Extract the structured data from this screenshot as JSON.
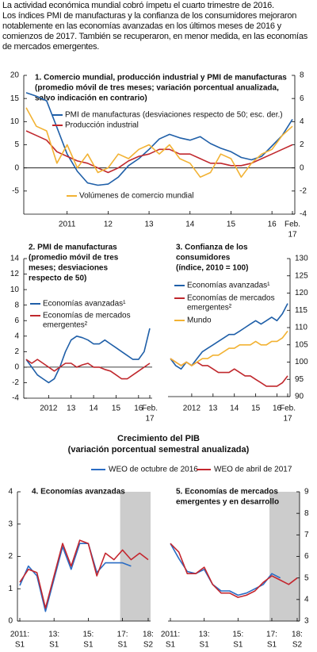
{
  "header": {
    "title": "La actividad económica mundial cobró ímpetu el cuarto trimestre de 2016.",
    "body": "Los índices PMI de manufacturas y la confianza de los consumidores mejoraron notablemente en las economías avanzadas en los últimos meses de 2016 y comienzos de 2017. También se recuperaron, en menor medida, en las economías de mercados emergentes."
  },
  "gdp_panel_title": [
    "Crecimiento del PIB",
    "(variación porcentual semestral anualizada)"
  ],
  "chart_data": [
    {
      "type": "line",
      "title": [
        "1. Comercio mundial, producción industrial y PMI de manufacturas",
        "(promedio móvil de tres meses; variación porcentual anualizada,",
        "salvo indicación en contrario)"
      ],
      "categories": [
        null,
        null,
        null,
        null,
        "2011",
        null,
        null,
        null,
        "12",
        null,
        null,
        null,
        "13",
        null,
        null,
        null,
        "14",
        null,
        null,
        null,
        "15",
        null,
        null,
        null,
        "16",
        null,
        [
          "Feb.",
          "17"
        ]
      ],
      "ylim": [
        -10,
        20
      ],
      "yticks": [
        -5,
        0,
        5,
        10,
        15,
        20
      ],
      "y2lim": [
        -4,
        8
      ],
      "y2ticks": [
        -4,
        -2,
        0,
        2,
        4,
        6,
        8
      ],
      "series": [
        {
          "name": "PMI de manufacturas (desviaciones respecto de 50; esc. der.)",
          "color": "#1f5fa8",
          "axis": "y2",
          "values": [
            6.5,
            6.2,
            5.8,
            3.5,
            1.2,
            -0.3,
            -1.3,
            -1.5,
            -1.4,
            -0.8,
            0.2,
            0.8,
            1.6,
            2.5,
            2.9,
            2.6,
            2.4,
            2.7,
            2.1,
            1.7,
            1.4,
            0.9,
            0.7,
            1.0,
            1.9,
            2.8,
            4.2
          ]
        },
        {
          "name": "Producción industrial",
          "color": "#c0282d",
          "values": [
            8,
            7,
            6,
            3.5,
            2.5,
            1.5,
            1,
            0,
            -1,
            0,
            1.5,
            2.5,
            3,
            4,
            4,
            3,
            3,
            2,
            1,
            1,
            0.5,
            0.5,
            1,
            2,
            3,
            4,
            5
          ]
        },
        {
          "name": "Volúmenes de comercio mundial",
          "color": "#f2b233",
          "values": [
            13,
            9,
            8,
            1,
            5,
            0,
            3,
            -1,
            0,
            3,
            2,
            4,
            5,
            3,
            5,
            2,
            1,
            -2,
            -1,
            3,
            2,
            -2,
            1,
            3,
            4,
            7,
            9
          ]
        }
      ]
    },
    {
      "type": "line",
      "title": [
        "2. PMI de manufacturas",
        "(promedio móvil de tres",
        "meses; desviaciones",
        "respecto de 50)"
      ],
      "categories": [
        null,
        null,
        null,
        null,
        "2012",
        null,
        null,
        null,
        "13",
        null,
        null,
        null,
        "14",
        null,
        null,
        null,
        "15",
        null,
        null,
        null,
        "16",
        null,
        [
          "Feb.",
          "17"
        ]
      ],
      "ylim": [
        -4,
        14
      ],
      "yticks": [
        -4,
        -2,
        0,
        2,
        4,
        6,
        8,
        10,
        12,
        14
      ],
      "series": [
        {
          "name": "Economías avanzadas¹",
          "color": "#1f5fa8",
          "values": [
            1,
            0,
            -1,
            -1.5,
            -2,
            -1.5,
            0,
            2,
            3.5,
            4,
            3.8,
            3.5,
            3,
            3,
            3.5,
            3,
            2.5,
            2,
            1.5,
            1,
            1,
            2,
            5
          ]
        },
        {
          "name": [
            "Economías de mercados",
            "emergentes²"
          ],
          "color": "#c0282d",
          "values": [
            1,
            0.5,
            1,
            0.5,
            0,
            -0.5,
            0,
            0.5,
            0.5,
            0,
            0.3,
            0.5,
            0,
            0,
            -0.3,
            -0.5,
            -1,
            -1.5,
            -1.5,
            -1,
            -0.5,
            0,
            0.5
          ]
        }
      ]
    },
    {
      "type": "line",
      "title": [
        "3. Confianza de los",
        "consumidores",
        "(índice, 2010 = 100)"
      ],
      "categories": [
        null,
        null,
        null,
        null,
        "2012",
        null,
        null,
        null,
        "13",
        null,
        null,
        null,
        "14",
        null,
        null,
        null,
        "15",
        null,
        null,
        null,
        "16",
        null,
        [
          "Feb.",
          "17"
        ]
      ],
      "y_axis_position": "right",
      "ylim": [
        90,
        130
      ],
      "yticks": [
        90,
        95,
        100,
        105,
        110,
        115,
        120,
        125,
        130
      ],
      "series": [
        {
          "name": "Economías avanzadas¹",
          "color": "#1f5fa8",
          "values": [
            101,
            99,
            98,
            100,
            99,
            101,
            103,
            104,
            105,
            106,
            107,
            108,
            108,
            109,
            110,
            111,
            112,
            111,
            112,
            113,
            112,
            114,
            117
          ]
        },
        {
          "name": [
            "Economías de mercados",
            "emergentes²"
          ],
          "color": "#c0282d",
          "values": [
            101,
            100,
            99,
            100,
            99,
            100,
            99,
            99,
            98,
            97,
            97,
            97,
            98,
            97,
            96,
            96,
            95,
            94,
            93,
            93,
            93,
            94,
            96
          ]
        },
        {
          "name": "Mundo",
          "color": "#f2b233",
          "values": [
            101,
            100,
            99,
            100,
            99,
            100,
            101,
            101,
            102,
            102,
            103,
            104,
            104,
            105,
            105,
            105,
            106,
            105,
            105,
            106,
            106,
            107,
            109
          ]
        }
      ]
    },
    {
      "type": "line",
      "title": [
        "4. Economías avanzadas"
      ],
      "categories": [
        [
          "2011:",
          "S1"
        ],
        null,
        null,
        null,
        [
          "13:",
          "S1"
        ],
        null,
        null,
        null,
        [
          "15:",
          "S1"
        ],
        null,
        null,
        null,
        [
          "17:",
          "S1"
        ],
        null,
        null,
        [
          "18:",
          "S2"
        ]
      ],
      "shaded_from": 12,
      "ylim": [
        0,
        4
      ],
      "yticks": [
        0,
        1,
        2,
        3,
        4
      ],
      "series": [
        {
          "name": "WEO de octubre de 2016",
          "color": "#2a6cc4",
          "values": [
            1.1,
            1.7,
            1.4,
            0.3,
            1.3,
            2.3,
            1.6,
            2.4,
            2.4,
            1.5,
            1.8,
            1.8,
            1.8,
            1.7,
            null,
            null
          ]
        },
        {
          "name": "WEO de abril de 2017",
          "color": "#c4262e",
          "values": [
            1.2,
            1.6,
            1.5,
            0.4,
            1.4,
            2.4,
            1.7,
            2.5,
            2.4,
            1.4,
            2.1,
            1.9,
            2.2,
            1.9,
            2.1,
            1.9
          ]
        }
      ]
    },
    {
      "type": "line",
      "title": [
        "5. Economías de mercados",
        "emergentes y en desarrollo"
      ],
      "categories": [
        [
          "2011:",
          "S1"
        ],
        null,
        null,
        null,
        [
          "13:",
          "S1"
        ],
        null,
        null,
        null,
        [
          "15:",
          "S1"
        ],
        null,
        null,
        null,
        [
          "17:",
          "S1"
        ],
        null,
        null,
        [
          "18:",
          "S2"
        ]
      ],
      "shaded_from": 12,
      "y_axis_position": "right",
      "ylim": [
        3,
        9
      ],
      "yticks": [
        3,
        4,
        5,
        6,
        7,
        8,
        9
      ],
      "series": [
        {
          "color": "#2a6cc4",
          "values": [
            6.6,
            5.9,
            5.3,
            5.2,
            5.4,
            4.7,
            4.4,
            4.4,
            4.2,
            4.3,
            4.5,
            4.7,
            5.2,
            5.0,
            null,
            null
          ]
        },
        {
          "color": "#c4262e",
          "values": [
            6.6,
            6.2,
            5.2,
            5.2,
            5.5,
            4.7,
            4.3,
            4.3,
            4.1,
            4.2,
            4.4,
            4.8,
            5.1,
            4.9,
            4.7,
            5.0
          ]
        }
      ]
    }
  ]
}
